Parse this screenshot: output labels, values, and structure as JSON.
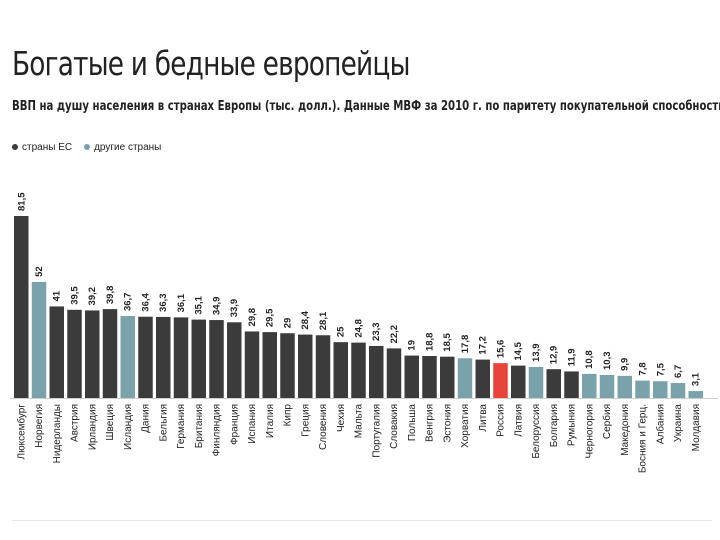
{
  "title": "Богатые и бедные европейцы",
  "subtitle": "ВВП на душу населения в странах Европы (тыс. долл.). Данные МВФ за 2010 г. по паритету покупательной способности",
  "legend": {
    "eu_label": "страны ЕС",
    "other_label": "другие страны"
  },
  "colors": {
    "eu": "#3b3b3b",
    "other": "#7aa2ab",
    "russia": "#e8433b"
  },
  "chart_data": {
    "type": "bar",
    "title": "Богатые и бедные европейцы",
    "subtitle": "ВВП на душу населения в странах Европы (тыс. долл.). Данные МВФ за 2010 г. по паритету покупательной способности",
    "xlabel": "",
    "ylabel": "",
    "ylim": [
      0,
      81.5
    ],
    "grid": false,
    "legend_position": "top-left",
    "categories": [
      "Люксембург",
      "Норвегия",
      "Нидерланды",
      "Австрия",
      "Ирландия",
      "Швеция",
      "Исландия",
      "Дания",
      "Бельгия",
      "Германия",
      "Британия",
      "Финляндия",
      "Франция",
      "Испания",
      "Италия",
      "Кипр",
      "Греция",
      "Словения",
      "Чехия",
      "Мальта",
      "Португалия",
      "Словакия",
      "Польша",
      "Венгрия",
      "Эстония",
      "Хорватия",
      "Литва",
      "Россия",
      "Латвия",
      "Белоруссия",
      "Болгария",
      "Румыния",
      "Черногория",
      "Сербия",
      "Македония",
      "Босния и Герц.",
      "Албания",
      "Украина",
      "Молдавия"
    ],
    "labels": [
      "81,5",
      "52",
      "41",
      "39,5",
      "39,2",
      "39,8",
      "36,7",
      "36,4",
      "36,3",
      "36,1",
      "35,1",
      "34,9",
      "33,9",
      "29,8",
      "29,5",
      "29",
      "28,4",
      "28,1",
      "25",
      "24,8",
      "23,3",
      "22,2",
      "19",
      "18,8",
      "18,5",
      "17,8",
      "17,2",
      "15,6",
      "14,5",
      "13,9",
      "12,9",
      "11,9",
      "10,8",
      "10,3",
      "9,9",
      "7,8",
      "7,5",
      "6,7",
      "3,1"
    ],
    "values": [
      81.5,
      52,
      41,
      39.5,
      39.2,
      39.8,
      36.7,
      36.4,
      36.3,
      36.1,
      35.1,
      34.9,
      33.9,
      29.8,
      29.5,
      29,
      28.4,
      28.1,
      25,
      24.8,
      23.3,
      22.2,
      19,
      18.8,
      18.5,
      17.8,
      17.2,
      15.6,
      14.5,
      13.9,
      12.9,
      11.9,
      10.8,
      10.3,
      9.9,
      7.8,
      7.5,
      6.7,
      3.1
    ],
    "group": [
      "eu",
      "other",
      "eu",
      "eu",
      "eu",
      "eu",
      "other",
      "eu",
      "eu",
      "eu",
      "eu",
      "eu",
      "eu",
      "eu",
      "eu",
      "eu",
      "eu",
      "eu",
      "eu",
      "eu",
      "eu",
      "eu",
      "eu",
      "eu",
      "eu",
      "other",
      "eu",
      "russia",
      "eu",
      "other",
      "eu",
      "eu",
      "other",
      "other",
      "other",
      "other",
      "other",
      "other",
      "other"
    ]
  }
}
